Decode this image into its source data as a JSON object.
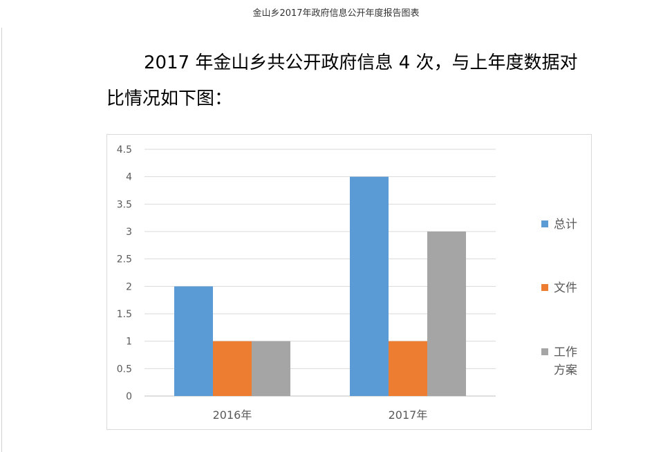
{
  "page": {
    "title": "金山乡2017年政府信息公开年度报告图表",
    "paragraph_line1": "2017 年金山乡共公开政府信息 4 次，与上年度数据对",
    "paragraph_line2": "比情况如下图："
  },
  "chart_data": {
    "type": "bar",
    "categories": [
      "2016年",
      "2017年"
    ],
    "series": [
      {
        "name": "总计",
        "values": [
          2,
          4
        ],
        "color": "#5b9bd5"
      },
      {
        "name": "文件",
        "values": [
          1,
          1
        ],
        "color": "#ed7d31"
      },
      {
        "name": "工作方案",
        "values": [
          1,
          3
        ],
        "color": "#a5a5a5",
        "legend_lines": [
          "工作",
          "方案"
        ]
      }
    ],
    "ylim": [
      0,
      4.5
    ],
    "yticks": [
      "0",
      "0.5",
      "1",
      "1.5",
      "2",
      "2.5",
      "3",
      "3.5",
      "4",
      "4.5"
    ],
    "grid": true,
    "legend_position": "right"
  }
}
